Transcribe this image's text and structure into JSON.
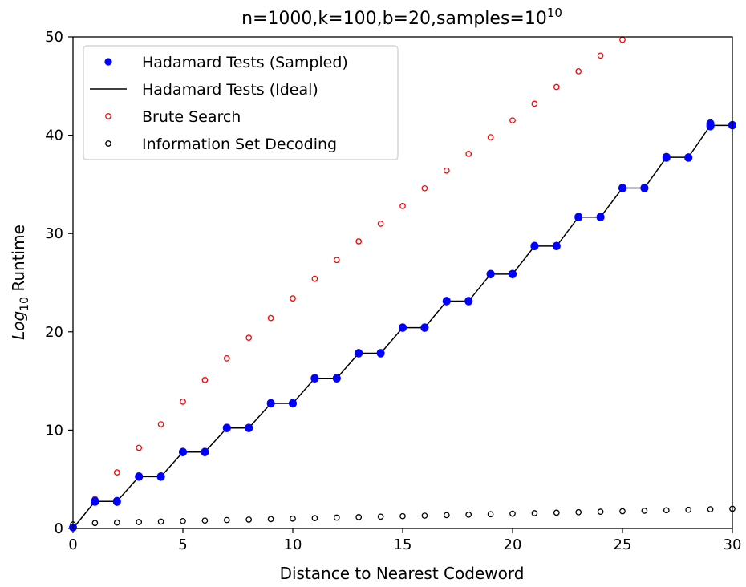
{
  "chart_data": {
    "type": "scatter",
    "title": {
      "text": "n=1000,k=100,b=20,samples=10",
      "superscript": "10"
    },
    "xlabel": "Distance to Nearest Codeword",
    "ylabel": {
      "prefix": "Log",
      "subscript": "10",
      "suffix": " Runtime"
    },
    "xlim": [
      0,
      30
    ],
    "ylim": [
      0,
      50
    ],
    "xticks": [
      0,
      5,
      10,
      15,
      20,
      25,
      30
    ],
    "yticks": [
      0,
      10,
      20,
      30,
      40,
      50
    ],
    "grid": false,
    "legend_position": "top-left",
    "series": [
      {
        "name": "Hadamard Tests (Sampled)",
        "marker": "filled-circle",
        "color": "#0000ff",
        "x": [
          0,
          1,
          1,
          2,
          2,
          3,
          3,
          4,
          4,
          5,
          5,
          6,
          6,
          7,
          7,
          8,
          8,
          9,
          9,
          10,
          10,
          11,
          11,
          12,
          12,
          13,
          13,
          14,
          14,
          15,
          15,
          16,
          16,
          17,
          17,
          18,
          18,
          19,
          19,
          20,
          20,
          21,
          21,
          22,
          22,
          23,
          23,
          24,
          24,
          25,
          25,
          26,
          26,
          27,
          27,
          28,
          28,
          29,
          29,
          29,
          30,
          30
        ],
        "y": [
          0.1,
          2.8,
          2.7,
          2.8,
          2.7,
          5.3,
          5.25,
          5.3,
          5.25,
          7.8,
          7.75,
          7.8,
          7.75,
          10.2,
          10.25,
          10.2,
          10.25,
          12.7,
          12.75,
          12.7,
          12.75,
          15.25,
          15.3,
          15.25,
          15.3,
          17.8,
          17.85,
          17.8,
          17.85,
          20.4,
          20.45,
          20.4,
          20.45,
          23.1,
          23.15,
          23.1,
          23.15,
          25.85,
          25.9,
          25.85,
          25.9,
          28.7,
          28.75,
          28.7,
          28.75,
          31.65,
          31.7,
          31.65,
          31.7,
          34.6,
          34.65,
          34.6,
          34.65,
          37.7,
          37.8,
          37.7,
          37.75,
          40.9,
          41.2,
          41.0,
          41.0,
          41.05
        ]
      },
      {
        "name": "Hadamard Tests (Ideal)",
        "marker": "line",
        "color": "#000000",
        "x": [
          0,
          1,
          2,
          3,
          4,
          5,
          6,
          7,
          8,
          9,
          10,
          11,
          12,
          13,
          14,
          15,
          16,
          17,
          18,
          19,
          20,
          21,
          22,
          23,
          24,
          25,
          26,
          27,
          28,
          29,
          30
        ],
        "y": [
          0,
          2.75,
          2.75,
          5.27,
          5.27,
          7.77,
          7.77,
          10.22,
          10.22,
          12.72,
          12.72,
          15.27,
          15.27,
          17.82,
          17.82,
          20.42,
          20.42,
          23.12,
          23.12,
          25.87,
          25.87,
          28.72,
          28.72,
          31.67,
          31.67,
          34.62,
          34.62,
          37.75,
          37.75,
          41.0,
          41.0
        ]
      },
      {
        "name": "Brute Search",
        "marker": "open-circle",
        "color": "#ff0000",
        "x": [
          1,
          2,
          3,
          4,
          5,
          6,
          7,
          8,
          9,
          10,
          11,
          12,
          13,
          14,
          15,
          16,
          17,
          18,
          19,
          20,
          21,
          22,
          23,
          24,
          25
        ],
        "y": [
          3.0,
          5.7,
          8.2,
          10.6,
          12.9,
          15.1,
          17.3,
          19.4,
          21.4,
          23.4,
          25.4,
          27.3,
          29.2,
          31.0,
          32.8,
          34.6,
          36.4,
          38.1,
          39.8,
          41.5,
          43.2,
          44.9,
          46.5,
          48.1,
          49.7
        ]
      },
      {
        "name": "Information Set Decoding",
        "marker": "open-circle",
        "color": "#000000",
        "x": [
          0,
          1,
          2,
          3,
          4,
          5,
          6,
          7,
          8,
          9,
          10,
          11,
          12,
          13,
          14,
          15,
          16,
          17,
          18,
          19,
          20,
          21,
          22,
          23,
          24,
          25,
          26,
          27,
          28,
          29,
          30
        ],
        "y": [
          0.4,
          0.55,
          0.6,
          0.65,
          0.7,
          0.75,
          0.8,
          0.85,
          0.9,
          0.95,
          1.0,
          1.05,
          1.1,
          1.15,
          1.2,
          1.25,
          1.3,
          1.35,
          1.4,
          1.45,
          1.5,
          1.55,
          1.6,
          1.65,
          1.7,
          1.75,
          1.8,
          1.85,
          1.9,
          1.95,
          2.0
        ]
      }
    ]
  }
}
